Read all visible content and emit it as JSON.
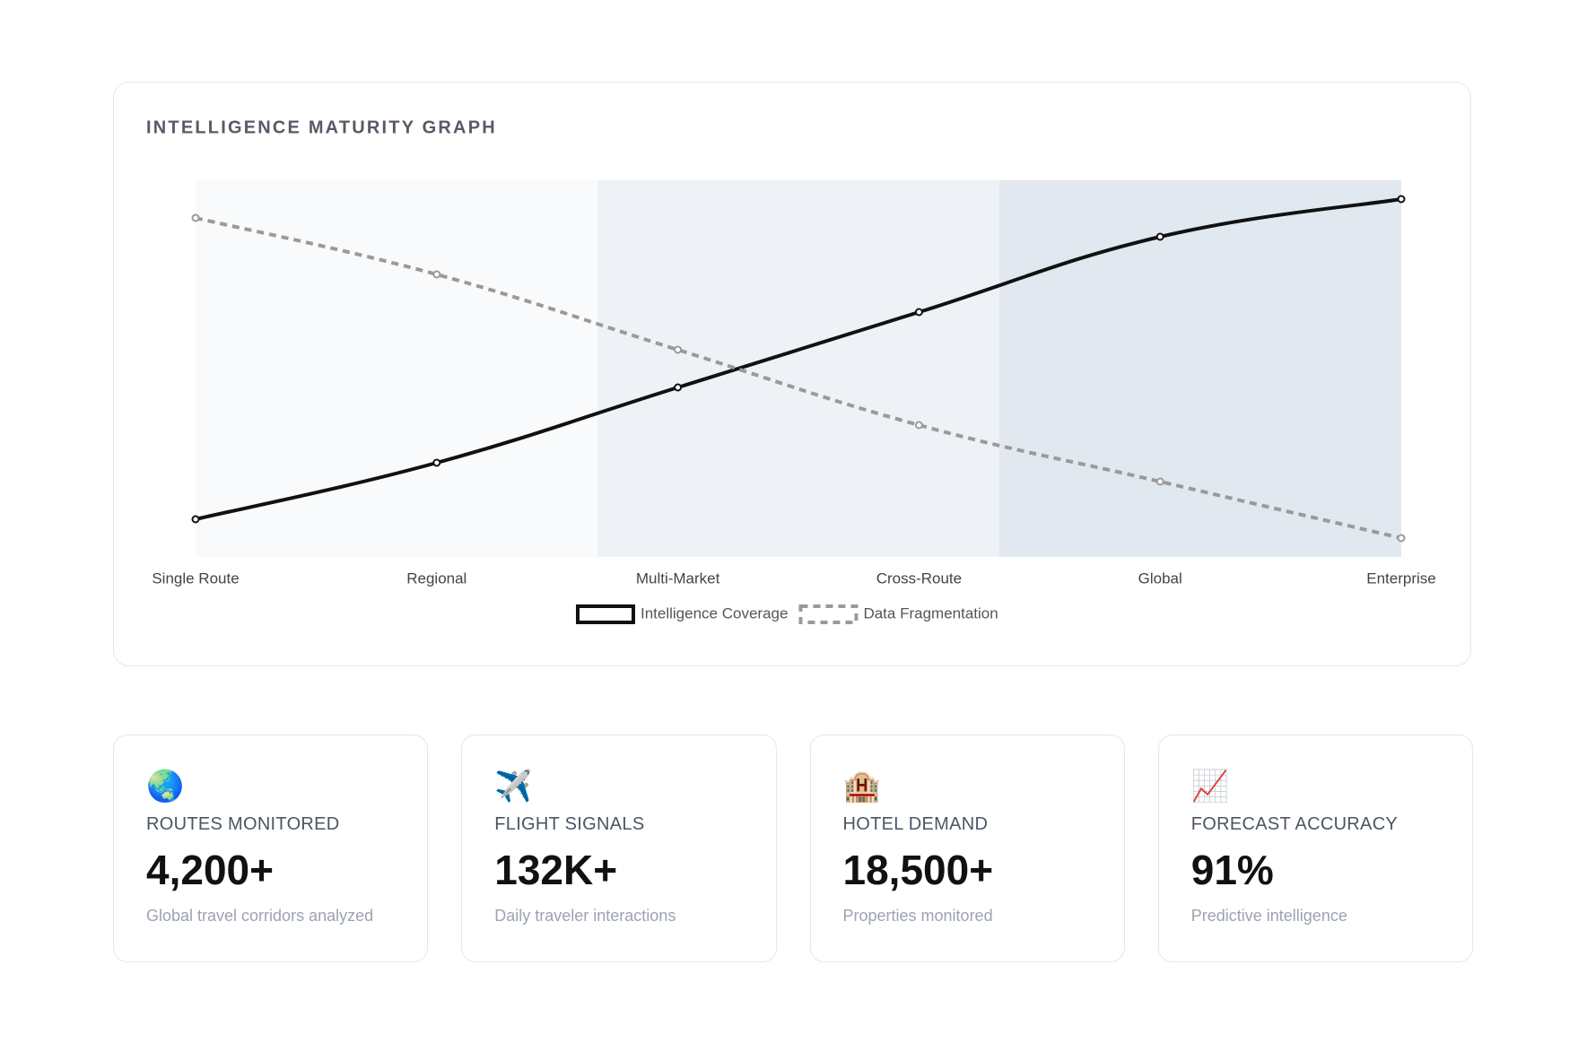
{
  "chart_data": {
    "type": "line",
    "title": "INTELLIGENCE MATURITY GRAPH",
    "categories": [
      "Single Route",
      "Regional",
      "Multi-Market",
      "Cross-Route",
      "Global",
      "Enterprise"
    ],
    "series": [
      {
        "name": "Intelligence Coverage",
        "color": "#111111",
        "dashed": false,
        "values": [
          10,
          25,
          45,
          65,
          85,
          95
        ]
      },
      {
        "name": "Data Fragmentation",
        "color": "#9a9a9a",
        "dashed": true,
        "values": [
          90,
          75,
          55,
          35,
          20,
          5
        ]
      }
    ],
    "ylim": [
      0,
      100
    ]
  },
  "stats": [
    {
      "icon": "🌏",
      "label": "ROUTES MONITORED",
      "value": "4,200+",
      "description": "Global travel corridors analyzed"
    },
    {
      "icon": "✈️",
      "label": "FLIGHT SIGNALS",
      "value": "132K+",
      "description": "Daily traveler interactions"
    },
    {
      "icon": "🏨",
      "label": "HOTEL DEMAND",
      "value": "18,500+",
      "description": "Properties monitored"
    },
    {
      "icon": "📈",
      "label": "FORECAST ACCURACY",
      "value": "91%",
      "description": "Predictive intelligence"
    }
  ]
}
